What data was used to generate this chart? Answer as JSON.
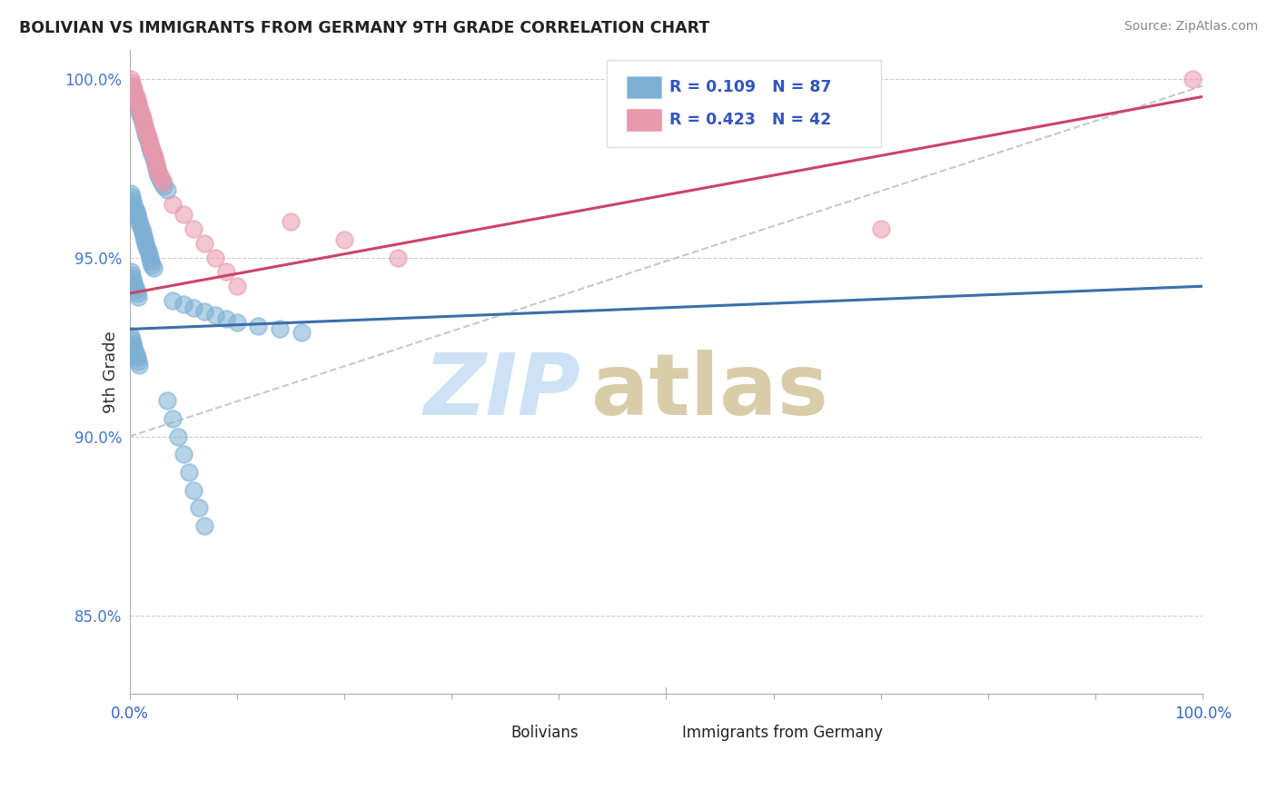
{
  "title": "BOLIVIAN VS IMMIGRANTS FROM GERMANY 9TH GRADE CORRELATION CHART",
  "source": "Source: ZipAtlas.com",
  "ylabel": "9th Grade",
  "r_blue": 0.109,
  "n_blue": 87,
  "r_pink": 0.423,
  "n_pink": 42,
  "color_blue": "#7bafd4",
  "color_pink": "#e899ac",
  "color_blue_line": "#3a6faa",
  "color_pink_line": "#cc4466",
  "color_dashed": "#bbbbbb",
  "color_ytick": "#4477cc",
  "xlim": [
    0.0,
    1.0
  ],
  "ylim": [
    0.828,
    1.008
  ],
  "yticks": [
    0.85,
    0.9,
    0.95,
    1.0
  ],
  "ytick_labels": [
    "85.0%",
    "90.0%",
    "95.0%",
    "100.0%"
  ],
  "xtick_positions": [
    0.0,
    0.1,
    0.2,
    0.3,
    0.4,
    0.5,
    0.6,
    0.7,
    0.8,
    0.9,
    1.0
  ],
  "watermark_zip": "ZIP",
  "watermark_atlas": "atlas",
  "blue_line_start": 0.93,
  "blue_line_end": 0.942,
  "pink_line_start": 0.94,
  "pink_line_end": 0.995,
  "dashed_line_start": 0.9,
  "dashed_line_end": 0.998,
  "blue_scatter_x": [
    0.002,
    0.003,
    0.004,
    0.005,
    0.006,
    0.007,
    0.008,
    0.009,
    0.01,
    0.011,
    0.012,
    0.013,
    0.014,
    0.015,
    0.016,
    0.017,
    0.018,
    0.019,
    0.02,
    0.021,
    0.022,
    0.023,
    0.024,
    0.025,
    0.026,
    0.027,
    0.028,
    0.03,
    0.032,
    0.035,
    0.001,
    0.002,
    0.003,
    0.004,
    0.005,
    0.006,
    0.007,
    0.008,
    0.009,
    0.01,
    0.011,
    0.012,
    0.013,
    0.014,
    0.015,
    0.016,
    0.017,
    0.018,
    0.019,
    0.02,
    0.021,
    0.022,
    0.001,
    0.002,
    0.003,
    0.004,
    0.005,
    0.006,
    0.007,
    0.008,
    0.04,
    0.05,
    0.06,
    0.07,
    0.08,
    0.09,
    0.1,
    0.12,
    0.14,
    0.16,
    0.001,
    0.002,
    0.003,
    0.004,
    0.005,
    0.006,
    0.007,
    0.008,
    0.009,
    0.035,
    0.04,
    0.045,
    0.05,
    0.055,
    0.06,
    0.065,
    0.07
  ],
  "blue_scatter_y": [
    0.998,
    0.997,
    0.996,
    0.995,
    0.994,
    0.993,
    0.992,
    0.991,
    0.99,
    0.989,
    0.988,
    0.987,
    0.986,
    0.985,
    0.984,
    0.983,
    0.982,
    0.981,
    0.98,
    0.979,
    0.978,
    0.977,
    0.976,
    0.975,
    0.974,
    0.973,
    0.972,
    0.971,
    0.97,
    0.969,
    0.968,
    0.967,
    0.966,
    0.965,
    0.964,
    0.963,
    0.962,
    0.961,
    0.96,
    0.959,
    0.958,
    0.957,
    0.956,
    0.955,
    0.954,
    0.953,
    0.952,
    0.951,
    0.95,
    0.949,
    0.948,
    0.947,
    0.946,
    0.945,
    0.944,
    0.943,
    0.942,
    0.941,
    0.94,
    0.939,
    0.938,
    0.937,
    0.936,
    0.935,
    0.934,
    0.933,
    0.932,
    0.931,
    0.93,
    0.929,
    0.928,
    0.927,
    0.926,
    0.925,
    0.924,
    0.923,
    0.922,
    0.921,
    0.92,
    0.91,
    0.905,
    0.9,
    0.895,
    0.89,
    0.885,
    0.88,
    0.875
  ],
  "pink_scatter_x": [
    0.001,
    0.002,
    0.003,
    0.004,
    0.005,
    0.006,
    0.007,
    0.008,
    0.009,
    0.01,
    0.011,
    0.012,
    0.013,
    0.014,
    0.015,
    0.016,
    0.017,
    0.018,
    0.019,
    0.02,
    0.021,
    0.022,
    0.023,
    0.024,
    0.025,
    0.026,
    0.027,
    0.028,
    0.03,
    0.032,
    0.04,
    0.05,
    0.06,
    0.07,
    0.08,
    0.09,
    0.1,
    0.15,
    0.2,
    0.25,
    0.99,
    0.7
  ],
  "pink_scatter_y": [
    1.0,
    0.999,
    0.998,
    0.997,
    0.996,
    0.995,
    0.994,
    0.993,
    0.992,
    0.991,
    0.99,
    0.989,
    0.988,
    0.987,
    0.986,
    0.985,
    0.984,
    0.983,
    0.982,
    0.981,
    0.98,
    0.979,
    0.978,
    0.977,
    0.976,
    0.975,
    0.974,
    0.973,
    0.972,
    0.971,
    0.965,
    0.962,
    0.958,
    0.954,
    0.95,
    0.946,
    0.942,
    0.96,
    0.955,
    0.95,
    1.0,
    0.958
  ]
}
